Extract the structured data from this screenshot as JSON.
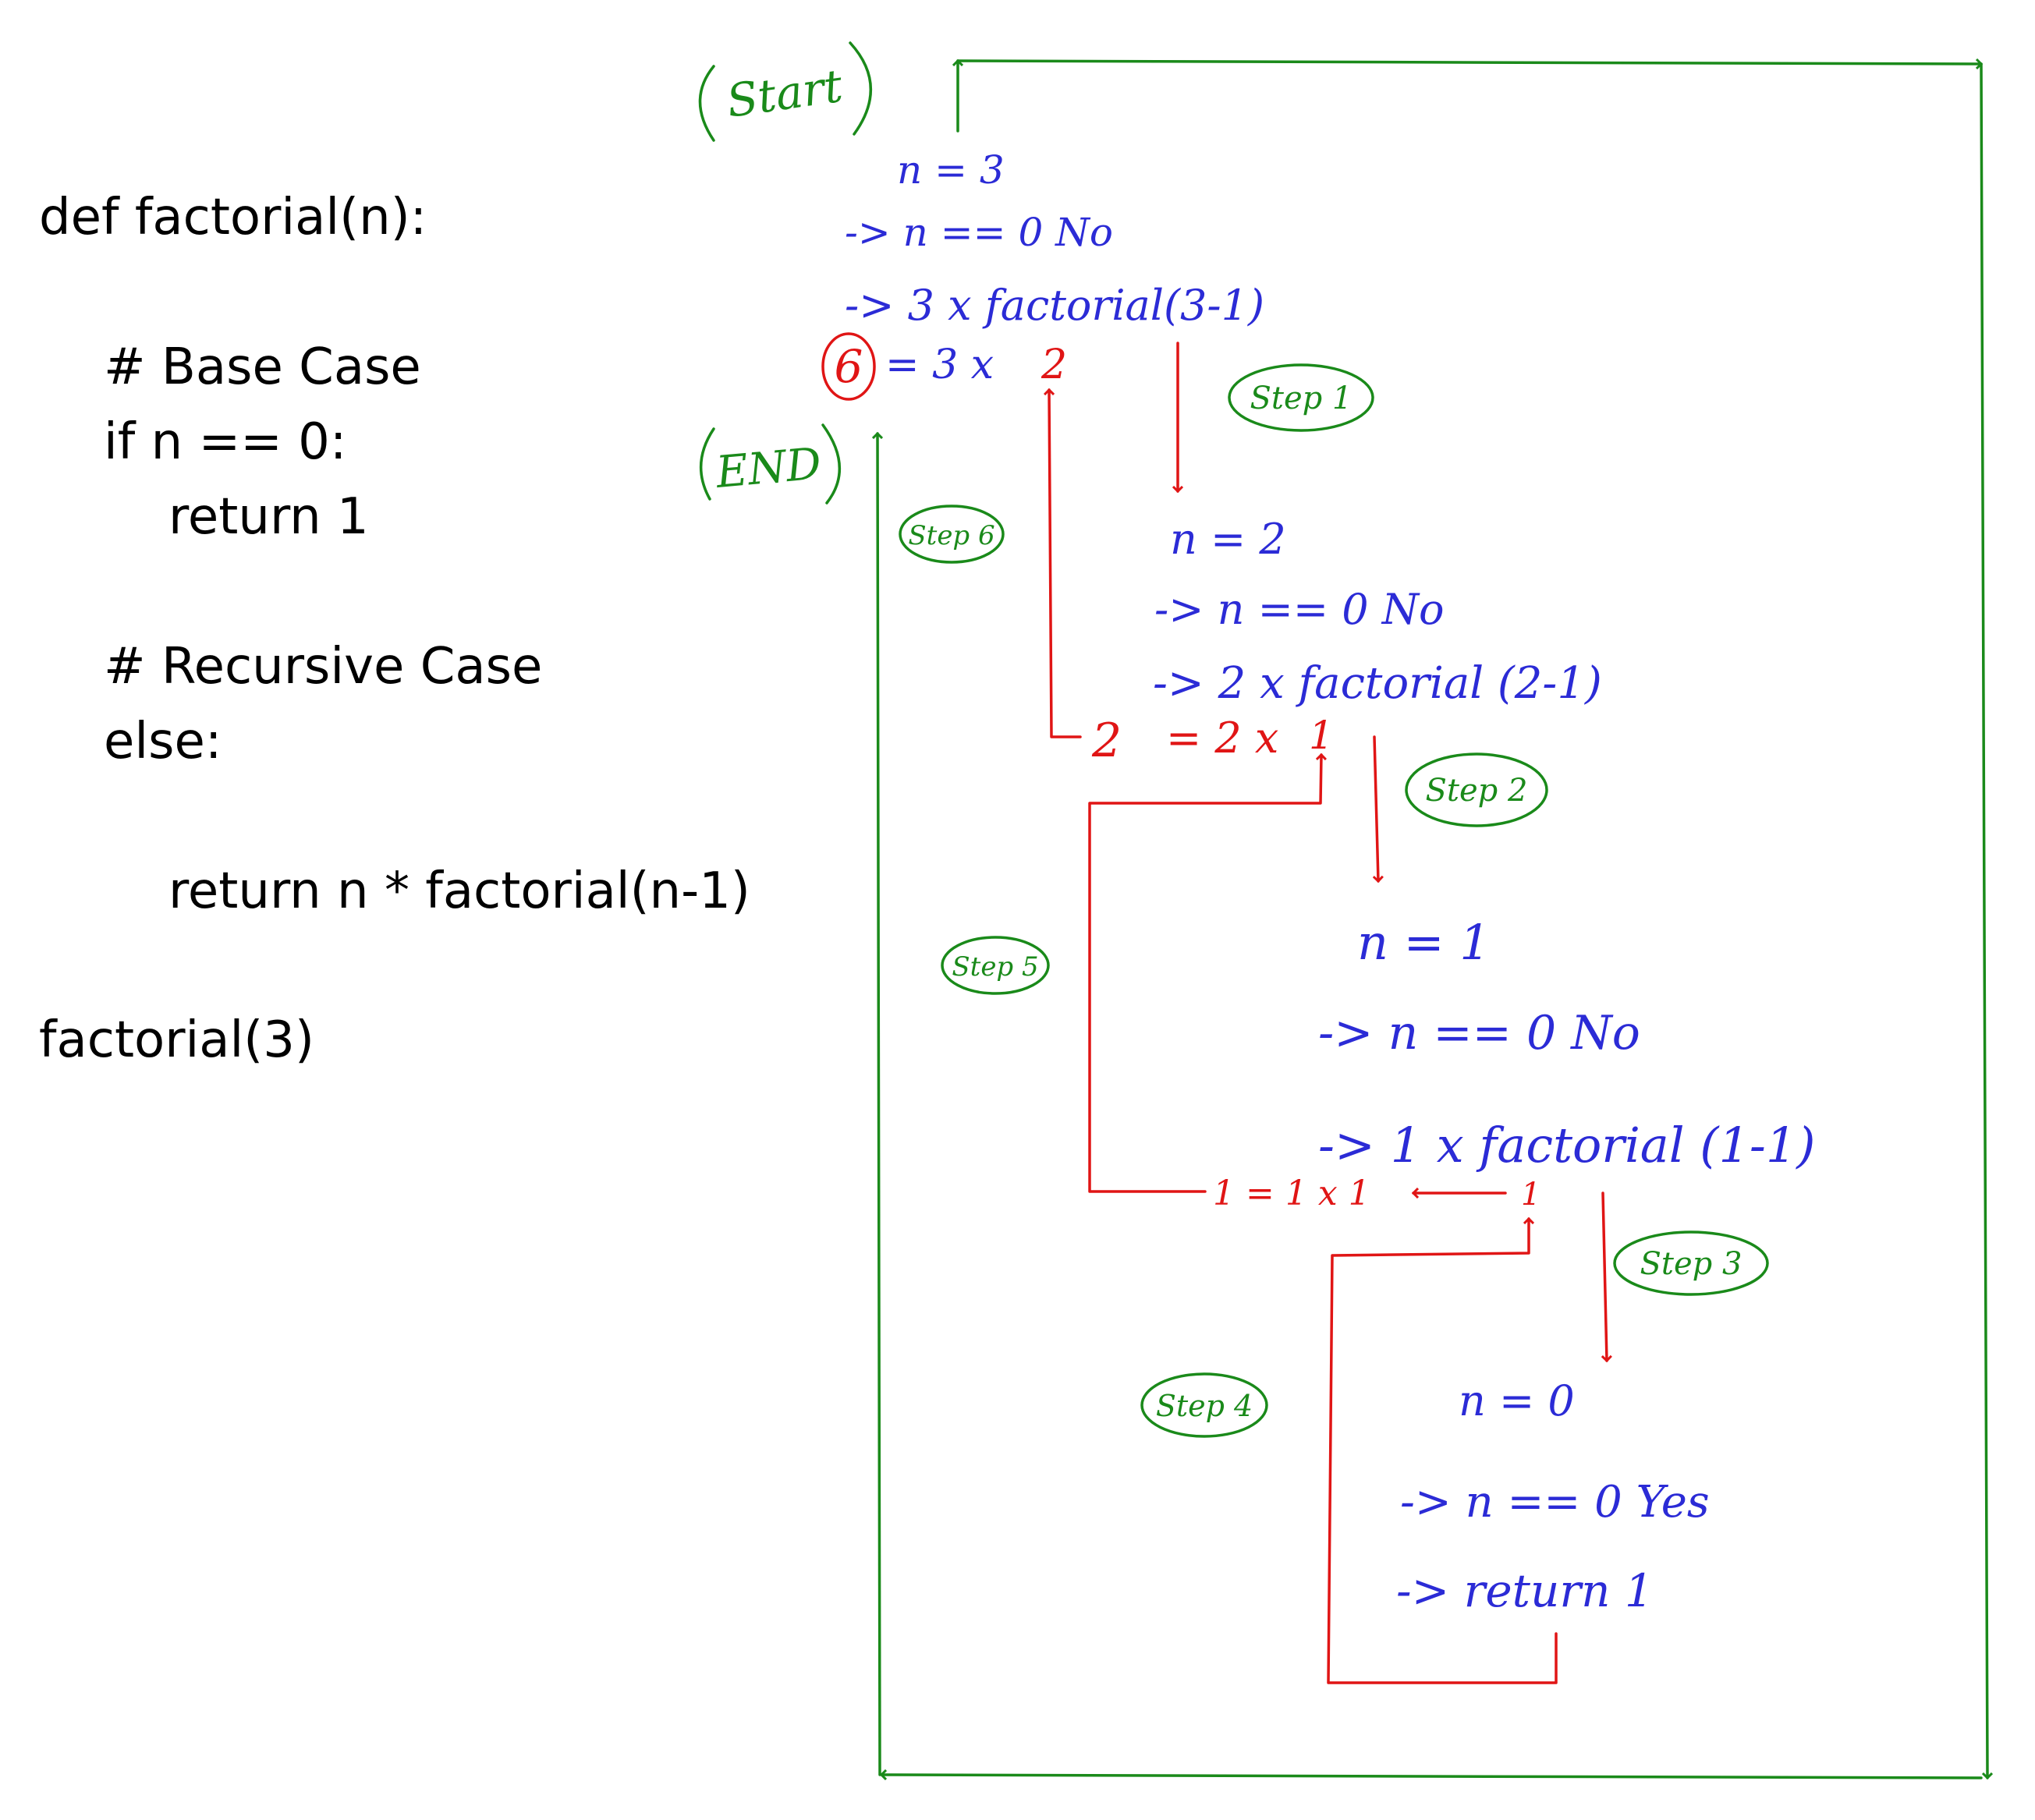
{
  "code": {
    "line1": "def factorial(n):",
    "line2": "# Base Case",
    "line3": "if n == 0:",
    "line4": "return 1",
    "line5": "# Recursive Case",
    "line6": "else:",
    "line7": "return n * factorial(n-1)",
    "line8": "factorial(3)"
  },
  "labels": {
    "start": "Start",
    "end": "END",
    "step1": "Step 1",
    "step2": "Step 2",
    "step3": "Step 3",
    "step4": "Step 4",
    "step5": "Step 5",
    "step6": "Step 6"
  },
  "call1": {
    "n": "n = 3",
    "check": "-> n == 0  No",
    "recurse": "->  3 x factorial(3-1)",
    "result": "6",
    "result_expr": "= 3 x ",
    "result_sub": "2"
  },
  "call2": {
    "n": "n = 2",
    "check": "-> n == 0  No",
    "recurse": "-> 2 x factorial (2-1)",
    "result": "2",
    "result_expr": "= 2 x ",
    "result_sub": "1"
  },
  "call3": {
    "n": "n = 1",
    "check": "-> n == 0 No",
    "recurse": "-> 1 x factorial (1-1)",
    "result": "1 = 1 x 1",
    "returned": "1"
  },
  "call4": {
    "n": "n = 0",
    "check": "-> n == 0  Yes",
    "ret": "-> return 1"
  },
  "colors": {
    "code": "#000000",
    "trace": "#2b2bd6",
    "return_path": "#e01515",
    "flow": "#1a8a1a"
  }
}
